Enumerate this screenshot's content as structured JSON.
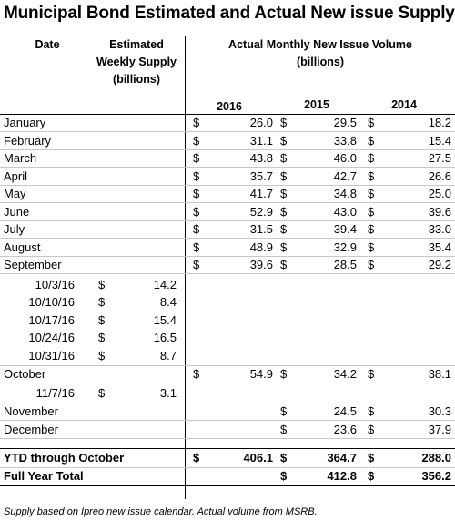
{
  "title": "Municipal Bond Estimated and Actual New issue Supply",
  "headers": {
    "date": "Date",
    "estimated": [
      "Estimated",
      "Weekly Supply",
      "(billions)"
    ],
    "actual": [
      "Actual Monthly New Issue Volume",
      "(billions)"
    ],
    "years": [
      "2016",
      "2015",
      "2014"
    ]
  },
  "months": [
    {
      "label": "January",
      "v2016": "26.0",
      "v2015": "29.5",
      "v2014": "18.2"
    },
    {
      "label": "February",
      "v2016": "31.1",
      "v2015": "33.8",
      "v2014": "15.4"
    },
    {
      "label": "March",
      "v2016": "43.8",
      "v2015": "46.0",
      "v2014": "27.5"
    },
    {
      "label": "April",
      "v2016": "35.7",
      "v2015": "42.7",
      "v2014": "26.6"
    },
    {
      "label": "May",
      "v2016": "41.7",
      "v2015": "34.8",
      "v2014": "25.0"
    },
    {
      "label": "June",
      "v2016": "52.9",
      "v2015": "43.0",
      "v2014": "39.6"
    },
    {
      "label": "July",
      "v2016": "31.5",
      "v2015": "39.4",
      "v2014": "33.0"
    },
    {
      "label": "August",
      "v2016": "48.9",
      "v2015": "32.9",
      "v2014": "35.4"
    },
    {
      "label": "September",
      "v2016": "39.6",
      "v2015": "28.5",
      "v2014": "29.2"
    }
  ],
  "weeks": [
    {
      "date": "10/3/16",
      "est": "14.2"
    },
    {
      "date": "10/10/16",
      "est": "8.4"
    },
    {
      "date": "10/17/16",
      "est": "15.4"
    },
    {
      "date": "10/24/16",
      "est": "16.5"
    },
    {
      "date": "10/31/16",
      "est": "8.7"
    }
  ],
  "october": {
    "label": "October",
    "v2016": "54.9",
    "v2015": "34.2",
    "v2014": "38.1"
  },
  "week_nov": {
    "date": "11/7/16",
    "est": "3.1"
  },
  "later_months": [
    {
      "label": "November",
      "v2015": "24.5",
      "v2014": "30.3"
    },
    {
      "label": "December",
      "v2015": "23.6",
      "v2014": "37.9"
    }
  ],
  "ytd": {
    "label": "YTD through October",
    "v2016": "406.1",
    "v2015": "364.7",
    "v2014": "288.0"
  },
  "full_year": {
    "label": "Full Year Total",
    "v2015": "412.8",
    "v2014": "356.2"
  },
  "currency": "$",
  "footnote": "Supply based on Ipreo new issue calendar. Actual volume from MSRB."
}
